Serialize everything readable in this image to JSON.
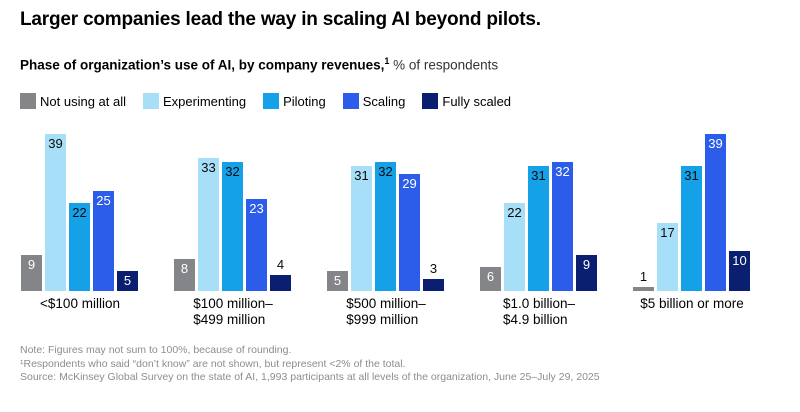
{
  "title": "Larger companies lead the way in scaling AI beyond pilots.",
  "subtitle": {
    "bold": "Phase of organization’s use of AI, by company revenues,",
    "superscript": "1",
    "regular": " % of respondents"
  },
  "legend": [
    {
      "label": "Not using at all",
      "color": "#838588"
    },
    {
      "label": "Experimenting",
      "color": "#A8DFF8"
    },
    {
      "label": "Piloting",
      "color": "#14A1E8"
    },
    {
      "label": "Scaling",
      "color": "#2C5CEA"
    },
    {
      "label": "Fully scaled",
      "color": "#0A1F70"
    }
  ],
  "chart_data": {
    "type": "bar",
    "title": "Phase of organization’s use of AI, by company revenues, % of respondents",
    "unit": "%",
    "grid": false,
    "legend_position": "top",
    "value_labels": true,
    "ylim": [
      0,
      39
    ],
    "categories": [
      "<$100 million",
      "$100 million–$499 million",
      "$500 million–$999 million",
      "$1.0 billion–$4.9 billion",
      "$5 billion or more"
    ],
    "category_label_lines": [
      [
        "<$100 million"
      ],
      [
        "$100 million–",
        "$499 million"
      ],
      [
        "$500 million–",
        "$999 million"
      ],
      [
        "$1.0 billion–",
        "$4.9 billion"
      ],
      [
        "$5 billion or more"
      ]
    ],
    "series": [
      {
        "name": "Not using at all",
        "color": "#838588",
        "label_color": "#ffffff",
        "values": [
          9,
          8,
          5,
          6,
          1
        ]
      },
      {
        "name": "Experimenting",
        "color": "#A8DFF8",
        "label_color": "#0b0b0b",
        "values": [
          39,
          33,
          31,
          22,
          17
        ]
      },
      {
        "name": "Piloting",
        "color": "#14A1E8",
        "label_color": "#0b0b0b",
        "values": [
          22,
          32,
          32,
          31,
          31
        ]
      },
      {
        "name": "Scaling",
        "color": "#2C5CEA",
        "label_color": "#ffffff",
        "values": [
          25,
          23,
          29,
          32,
          39
        ]
      },
      {
        "name": "Fully scaled",
        "color": "#0A1F70",
        "label_color": "#ffffff",
        "values": [
          5,
          4,
          3,
          9,
          10
        ]
      }
    ],
    "outside_label_color": "#0b0b0b"
  },
  "notes": [
    "Note: Figures may not sum to 100%, because of rounding.",
    "¹Respondents who said “don’t know” are not shown, but represent <2% of the total.",
    "Source: McKinsey Global Survey on the state of AI, 1,993 participants at all levels of the organization, June 25–July 29, 2025"
  ]
}
